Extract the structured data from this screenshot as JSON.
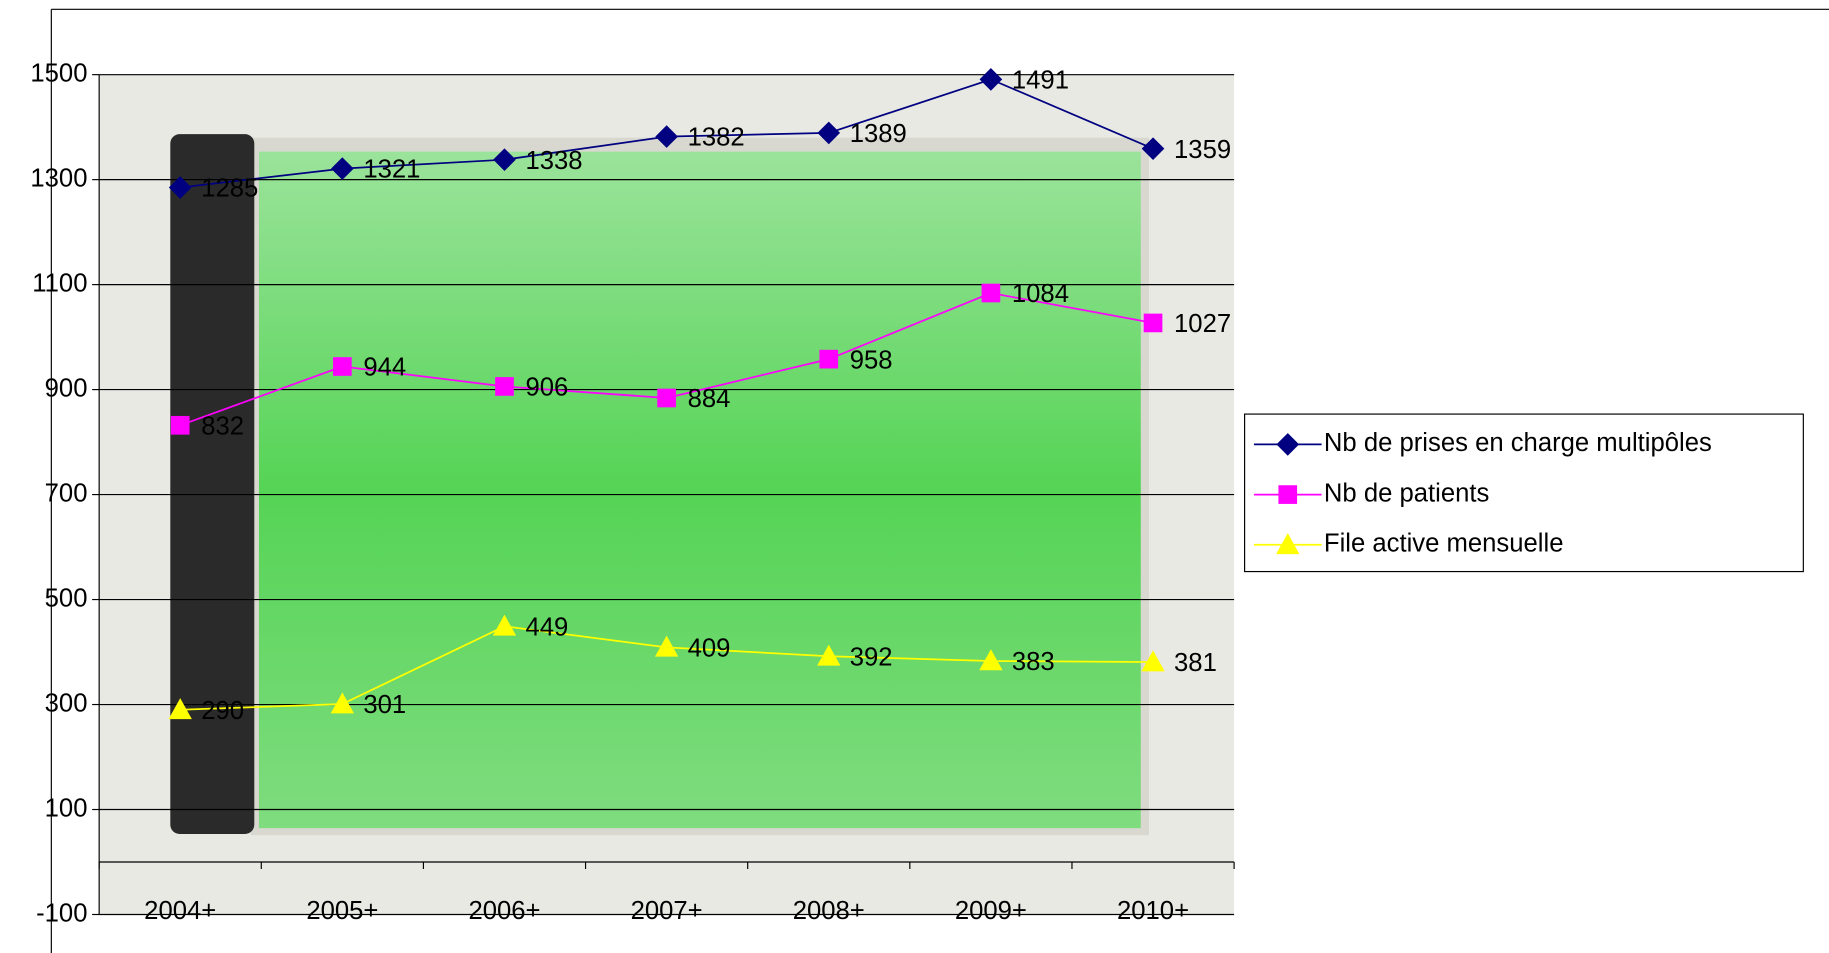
{
  "chart_data": {
    "type": "line",
    "categories": [
      "2004+",
      "2005+",
      "2006+",
      "2007+",
      "2008+",
      "2009+",
      "2010+"
    ],
    "series": [
      {
        "name": "Nb de prises en charge multipôles",
        "color": "#000080",
        "marker": "diamond",
        "values": [
          1285,
          1321,
          1338,
          1382,
          1389,
          1491,
          1359
        ]
      },
      {
        "name": "Nb de patients",
        "color": "#ff00ff",
        "marker": "square",
        "values": [
          832,
          944,
          906,
          884,
          958,
          1084,
          1027
        ]
      },
      {
        "name": "File active mensuelle",
        "color": "#ffff00",
        "marker": "triangle",
        "values": [
          290,
          301,
          449,
          409,
          392,
          383,
          381
        ]
      }
    ],
    "ylim": [
      -100,
      1500
    ],
    "yticks": [
      -100,
      100,
      300,
      500,
      700,
      900,
      1100,
      1300,
      1500
    ],
    "grid": true,
    "legend": "right"
  }
}
